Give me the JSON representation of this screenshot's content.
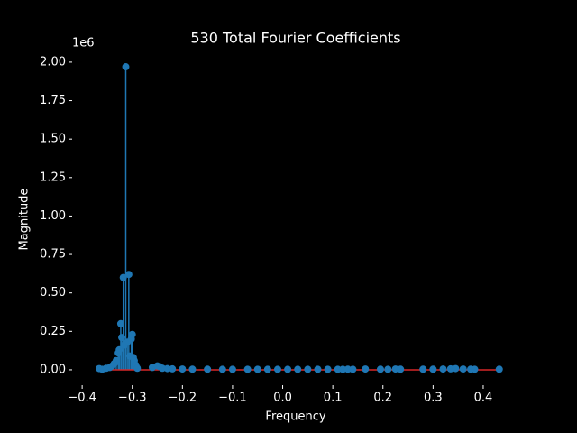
{
  "chart_data": {
    "type": "stem",
    "title": "530 Total Fourier Coefficients",
    "x_label": "Frequency",
    "y_label": "Magnitude",
    "y_offset_label": "1e6",
    "color": "#1f77b4",
    "baseline_color": "#d62728",
    "x": [
      -0.366,
      -0.36,
      -0.352,
      -0.345,
      -0.34,
      -0.336,
      -0.332,
      -0.328,
      -0.326,
      -0.323,
      -0.321,
      -0.318,
      -0.316,
      -0.313,
      -0.31,
      -0.307,
      -0.305,
      -0.302,
      -0.3,
      -0.298,
      -0.296,
      -0.293,
      -0.29,
      -0.26,
      -0.25,
      -0.245,
      -0.24,
      -0.23,
      -0.22,
      -0.2,
      -0.18,
      -0.15,
      -0.12,
      -0.1,
      -0.07,
      -0.05,
      -0.03,
      -0.01,
      0.01,
      0.03,
      0.05,
      0.07,
      0.09,
      0.11,
      0.12,
      0.13,
      0.14,
      0.165,
      0.195,
      0.21,
      0.225,
      0.235,
      0.28,
      0.3,
      0.32,
      0.335,
      0.345,
      0.36,
      0.375,
      0.383,
      0.432
    ],
    "y": [
      8000,
      3000,
      10000,
      15000,
      25000,
      40000,
      60000,
      110000,
      130000,
      300000,
      210000,
      600000,
      160000,
      1970000,
      180000,
      620000,
      90000,
      200000,
      230000,
      80000,
      60000,
      30000,
      10000,
      15000,
      25000,
      20000,
      10000,
      8000,
      6000,
      5000,
      4000,
      4000,
      3000,
      3000,
      3000,
      3000,
      3000,
      3000,
      3000,
      3000,
      3000,
      3000,
      3000,
      3000,
      3000,
      4000,
      3000,
      5000,
      4000,
      3000,
      5000,
      4000,
      4000,
      4000,
      5000,
      6000,
      8000,
      5000,
      4000,
      3000,
      4000
    ],
    "xlim": [
      -0.42,
      0.472
    ],
    "ylim": [
      -100000,
      2064000
    ],
    "xticks": [
      {
        "value": -0.4,
        "label": "−0.4"
      },
      {
        "value": -0.3,
        "label": "−0.3"
      },
      {
        "value": -0.2,
        "label": "−0.2"
      },
      {
        "value": -0.1,
        "label": "−0.1"
      },
      {
        "value": 0,
        "label": "0.0"
      },
      0.1,
      0.2,
      0.3,
      0.4
    ],
    "yticks": [
      {
        "value": 0,
        "label": "0.00"
      },
      {
        "value": 250000,
        "label": "0.25"
      },
      {
        "value": 500000,
        "label": "0.50"
      },
      {
        "value": 750000,
        "label": "0.75"
      },
      {
        "value": 1000000,
        "label": "1.00"
      },
      {
        "value": 1250000,
        "label": "1.25"
      },
      {
        "value": 1500000,
        "label": "1.50"
      },
      {
        "value": 1750000,
        "label": "1.75"
      },
      {
        "value": 2000000,
        "label": "2.00"
      }
    ]
  }
}
